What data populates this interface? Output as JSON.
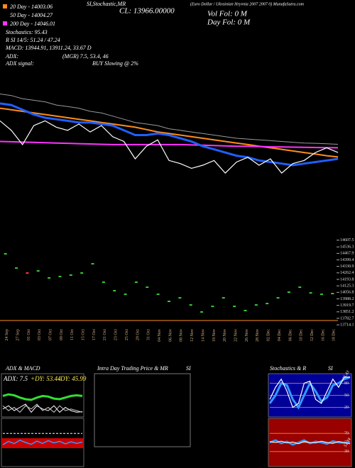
{
  "header": {
    "sma20": "20 Day - 14003.06",
    "sma50": "50 Day - 14004.27",
    "sma200": "200 Day - 14046.01",
    "stochastics": "Stochastics: 95.43",
    "rsi": "R          SI 14/5: 51.24 / 47.24",
    "macd": "MACD: 13944.91, 13911.24, 33.67 D",
    "adx": "ADX:",
    "adx_values": "(MGR) 7.5, 53.4, 46",
    "adx_signal": "ADX  signal:",
    "signal": "BUY Slowing @ 2%",
    "indicators": "SI,Stochastic,MR",
    "close": "CL: 13966.00000",
    "symbol": "(Euro Dollar / Ukrainian Hryvnia 2007 2007 0) MunafaSutra.com",
    "vol": "Vol Fol: 0  M",
    "day_vol": "Day Fol: 0  M"
  },
  "dates": [
    "24 Sep",
    "27 Sep",
    "01 Oct",
    "03 Oct",
    "07 Oct",
    "09 Oct",
    "11 Oct",
    "15 Oct",
    "17 Oct",
    "21 Oct",
    "23 Oct",
    "25 Oct",
    "29 Oct",
    "31 Oct",
    "04 Nov",
    "06 Nov",
    "08 Nov",
    "12 Nov",
    "14 Nov",
    "18 Nov",
    "20 Nov",
    "22 Nov",
    "26 Nov",
    "28 Nov",
    "02 Dec",
    "04 Dec",
    "06 Dec",
    "10 Dec",
    "12 Dec",
    "16 Dec",
    "18 Dec"
  ],
  "price_chart": {
    "type": "line",
    "ylim": [
      13850,
      14450
    ],
    "series": [
      {
        "color": "#999999",
        "values": [
          14430,
          14420,
          14400,
          14390,
          14380,
          14360,
          14350,
          14340,
          14320,
          14310,
          14290,
          14270,
          14250,
          14240,
          14230,
          14210,
          14200,
          14190,
          14180,
          14170,
          14160,
          14150,
          14145,
          14140,
          14135,
          14130,
          14125,
          14120,
          14118,
          14115,
          14112
        ]
      },
      {
        "color": "#ff8c1a",
        "values": [
          14340,
          14330,
          14320,
          14310,
          14300,
          14290,
          14280,
          14270,
          14260,
          14250,
          14240,
          14230,
          14220,
          14205,
          14190,
          14180,
          14170,
          14160,
          14150,
          14140,
          14130,
          14120,
          14110,
          14100,
          14090,
          14080,
          14070,
          14060,
          14050,
          14040,
          14032
        ]
      },
      {
        "color": "#ff33ff",
        "values": [
          14130,
          14128,
          14126,
          14124,
          14122,
          14120,
          14118,
          14116,
          14114,
          14112,
          14110,
          14110,
          14110,
          14110,
          14110,
          14110,
          14110,
          14108,
          14106,
          14104,
          14102,
          14100,
          14100,
          14098,
          14096,
          14095,
          14094,
          14093,
          14092,
          14091,
          14090
        ]
      },
      {
        "color": "#1f5fff",
        "values": [
          14370,
          14360,
          14330,
          14300,
          14280,
          14270,
          14260,
          14250,
          14250,
          14240,
          14230,
          14200,
          14170,
          14170,
          14180,
          14170,
          14150,
          14130,
          14100,
          14080,
          14060,
          14040,
          14030,
          14010,
          14000,
          13990,
          13980,
          13990,
          14000,
          14010,
          14020
        ]
      },
      {
        "color": "#ffffff",
        "values": [
          14260,
          14200,
          14110,
          14230,
          14260,
          14220,
          14200,
          14240,
          14190,
          14230,
          14160,
          14130,
          14020,
          14100,
          14140,
          14010,
          13990,
          13960,
          13980,
          14010,
          13930,
          14000,
          14030,
          13980,
          14020,
          13930,
          13990,
          14010,
          14060,
          14090,
          14060
        ]
      }
    ]
  },
  "candles": {
    "type": "candlestick",
    "ylim": [
      13700,
      14620
    ],
    "yticks": [
      14607.5,
      14536.3,
      14467.9,
      14399.4,
      14330.9,
      14262.4,
      14193.8,
      14125.3,
      14056.8,
      13988.2,
      13919.7,
      13851.2,
      13782.7,
      13714.1
    ],
    "values": [
      14463,
      14313,
      14261,
      14283,
      14209,
      14224,
      14239,
      14261,
      14358,
      14164,
      14074,
      14037,
      14164,
      14111,
      14037,
      13962,
      13999,
      13924,
      13850,
      13909,
      13999,
      13909,
      13865,
      13924,
      13939,
      13999,
      14059,
      14111,
      14051,
      14037,
      14044
    ],
    "colors": [
      "#33cc33",
      "#33cc33",
      "#ff3333",
      "#33cc33",
      "#33cc33",
      "#33cc33",
      "#33cc33",
      "#33cc33",
      "#33cc33",
      "#33cc33",
      "#33cc33",
      "#33cc33",
      "#33cc33",
      "#33cc33",
      "#33cc33",
      "#33cc33",
      "#33cc33",
      "#33cc33",
      "#33cc33",
      "#33cc33",
      "#33cc33",
      "#33cc33",
      "#33cc33",
      "#33cc33",
      "#33cc33",
      "#33cc33",
      "#33cc33",
      "#33cc33",
      "#33cc33",
      "#33cc33",
      "#33cc33"
    ]
  },
  "adx_panel": {
    "type": "line",
    "title": "ADX  & MACD",
    "adx": "ADX: 7.5",
    "plus_dy": "+DY: 53.44",
    "minus_dy": "-DY: 45.99",
    "ylim": [
      0,
      100
    ],
    "series": [
      {
        "color": "#33dd33",
        "values": [
          60,
          65,
          62,
          55,
          50,
          48,
          55,
          60,
          58,
          52,
          50,
          55,
          60,
          62,
          60
        ]
      },
      {
        "color": "#ffffff",
        "values": [
          20,
          30,
          15,
          25,
          35,
          10,
          30,
          20,
          15,
          30,
          10,
          25,
          15,
          10,
          12
        ]
      },
      {
        "color": "#cccccc",
        "values": [
          30,
          15,
          25,
          10,
          30,
          20,
          35,
          15,
          25,
          10,
          30,
          15,
          20,
          15,
          10
        ]
      }
    ]
  },
  "macd_panel": {
    "type": "line",
    "ylim": [
      -100,
      100
    ],
    "series": [
      {
        "color": "#ffffff",
        "values": [
          40,
          40,
          40,
          40,
          40,
          40,
          40,
          40,
          40,
          40,
          40,
          40,
          40,
          40,
          40
        ]
      },
      {
        "color": "#3399ff",
        "values": [
          -10,
          5,
          -5,
          10,
          0,
          -8,
          6,
          -4,
          8,
          -2,
          5,
          -6,
          3,
          -4,
          2
        ]
      }
    ]
  },
  "intraday_panel": {
    "title": "Intra Day Trading Price  & MR",
    "title2": "SI"
  },
  "stochastics_panel": {
    "type": "line",
    "title": "Stochastics & R",
    "title2": "SI",
    "value_label": "95.43",
    "ylim": [
      0,
      100
    ],
    "yticks": [
      80,
      50,
      20
    ],
    "series": [
      {
        "color": "#3399ff",
        "values": [
          30,
          50,
          80,
          75,
          40,
          20,
          50,
          80,
          60,
          35,
          45,
          75,
          80,
          90,
          95
        ]
      },
      {
        "color": "#ffffff",
        "values": [
          40,
          70,
          90,
          60,
          20,
          30,
          80,
          85,
          40,
          30,
          60,
          90,
          70,
          95,
          95
        ]
      }
    ]
  },
  "rsi_panel": {
    "type": "line",
    "value_label": "51.24",
    "ylim": [
      0,
      100
    ],
    "yticks": [
      70,
      50,
      30
    ],
    "series": [
      {
        "color": "#3399ff",
        "values": [
          50,
          55,
          48,
          52,
          45,
          50,
          55,
          48,
          52,
          50,
          47,
          53,
          50,
          49,
          51
        ]
      },
      {
        "color": "#ffffff",
        "values": [
          52,
          50,
          53,
          49,
          51,
          47,
          52,
          50,
          49,
          53,
          50,
          48,
          52,
          50,
          47
        ]
      }
    ]
  }
}
